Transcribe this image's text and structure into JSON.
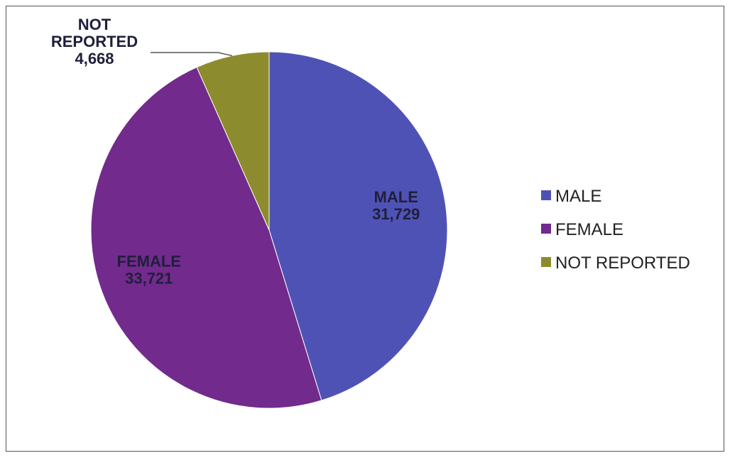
{
  "chart_data": {
    "type": "pie",
    "categories": [
      "MALE",
      "FEMALE",
      "NOT REPORTED"
    ],
    "values": [
      31729,
      33721,
      4668
    ],
    "value_labels": [
      "31,729",
      "33,721",
      "4,668"
    ],
    "colors": [
      "#4F52B5",
      "#722A8C",
      "#8C8C2E"
    ],
    "legend_position": "right",
    "slice_label_lines": {
      "MALE": [
        "MALE",
        "31,729"
      ],
      "FEMALE": [
        "FEMALE",
        "33,721"
      ],
      "NOT REPORTED": [
        "NOT",
        "REPORTED",
        "4,668"
      ]
    }
  },
  "legend": {
    "items": [
      "MALE",
      "FEMALE",
      "NOT REPORTED"
    ]
  }
}
